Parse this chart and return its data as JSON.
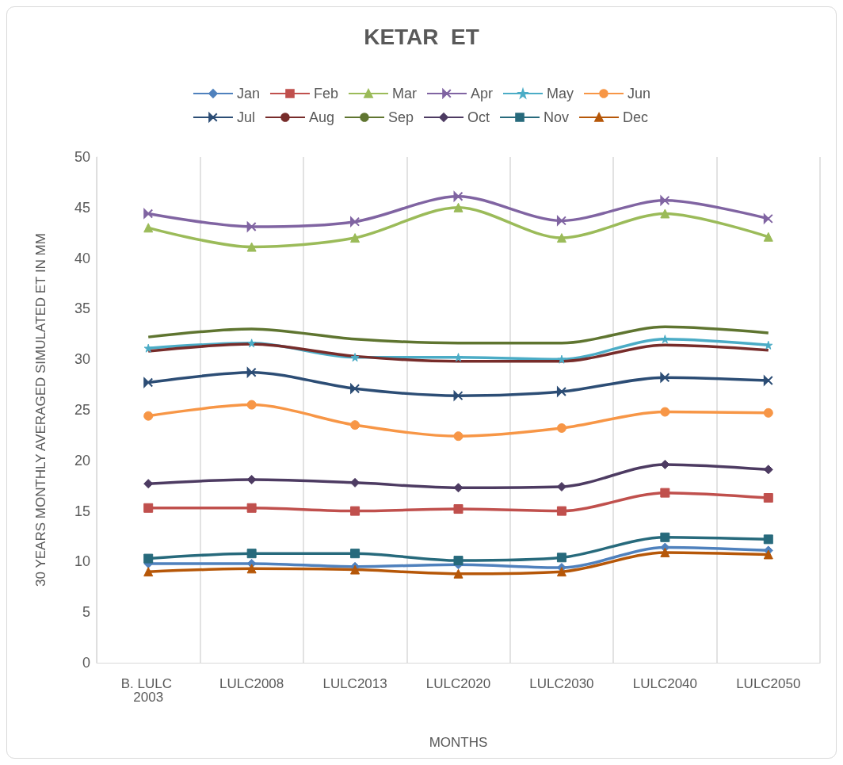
{
  "chart_data": {
    "type": "line",
    "title": "KETAR  ET",
    "xlabel": "MONTHS",
    "ylabel": "30 YEARS MONTHLY AVERAGED SIMULATED ET IN MM",
    "categories": [
      "B. LULC 2003",
      "LULC2008",
      "LULC2013",
      "LULC2020",
      "LULC2030",
      "LULC2040",
      "LULC2050"
    ],
    "ylim": [
      0,
      50
    ],
    "yticks": [
      0,
      5,
      10,
      15,
      20,
      25,
      30,
      35,
      40,
      45,
      50
    ],
    "grid": "x",
    "legend": "top",
    "series": [
      {
        "name": "Jan",
        "color": "#4f81bd",
        "marker": "diamond",
        "values": [
          9.8,
          9.8,
          9.5,
          9.7,
          9.4,
          11.4,
          11.1
        ]
      },
      {
        "name": "Feb",
        "color": "#c0504d",
        "marker": "square",
        "values": [
          15.3,
          15.3,
          15.0,
          15.2,
          15.0,
          16.8,
          16.3
        ]
      },
      {
        "name": "Mar",
        "color": "#9bbb59",
        "marker": "triangle",
        "values": [
          43.0,
          41.1,
          42.0,
          45.0,
          42.0,
          44.4,
          42.1
        ]
      },
      {
        "name": "Apr",
        "color": "#8064a2",
        "marker": "cross",
        "values": [
          44.4,
          43.1,
          43.6,
          46.1,
          43.7,
          45.7,
          43.9
        ]
      },
      {
        "name": "May",
        "color": "#4bacc6",
        "marker": "star",
        "values": [
          31.1,
          31.6,
          30.2,
          30.2,
          30.0,
          32.0,
          31.4
        ]
      },
      {
        "name": "Jun",
        "color": "#f79646",
        "marker": "circle",
        "values": [
          24.4,
          25.5,
          23.5,
          22.4,
          23.2,
          24.8,
          24.7
        ]
      },
      {
        "name": "Jul",
        "color": "#2c4d75",
        "marker": "cross",
        "values": [
          27.7,
          28.7,
          27.1,
          26.4,
          26.8,
          28.2,
          27.9
        ]
      },
      {
        "name": "Aug",
        "color": "#772c2a",
        "marker": "none",
        "values": [
          30.8,
          31.5,
          30.3,
          29.8,
          29.8,
          31.4,
          30.9
        ]
      },
      {
        "name": "Sep",
        "color": "#5f7530",
        "marker": "none",
        "values": [
          32.2,
          33.0,
          32.0,
          31.6,
          31.6,
          33.2,
          32.6
        ]
      },
      {
        "name": "Oct",
        "color": "#4d3b62",
        "marker": "diamond",
        "values": [
          17.7,
          18.1,
          17.8,
          17.3,
          17.4,
          19.6,
          19.1
        ]
      },
      {
        "name": "Nov",
        "color": "#276a7c",
        "marker": "square",
        "values": [
          10.3,
          10.8,
          10.8,
          10.1,
          10.4,
          12.4,
          12.2
        ]
      },
      {
        "name": "Dec",
        "color": "#b65708",
        "marker": "triangle",
        "values": [
          9.0,
          9.3,
          9.2,
          8.8,
          9.0,
          10.9,
          10.7
        ]
      }
    ]
  }
}
